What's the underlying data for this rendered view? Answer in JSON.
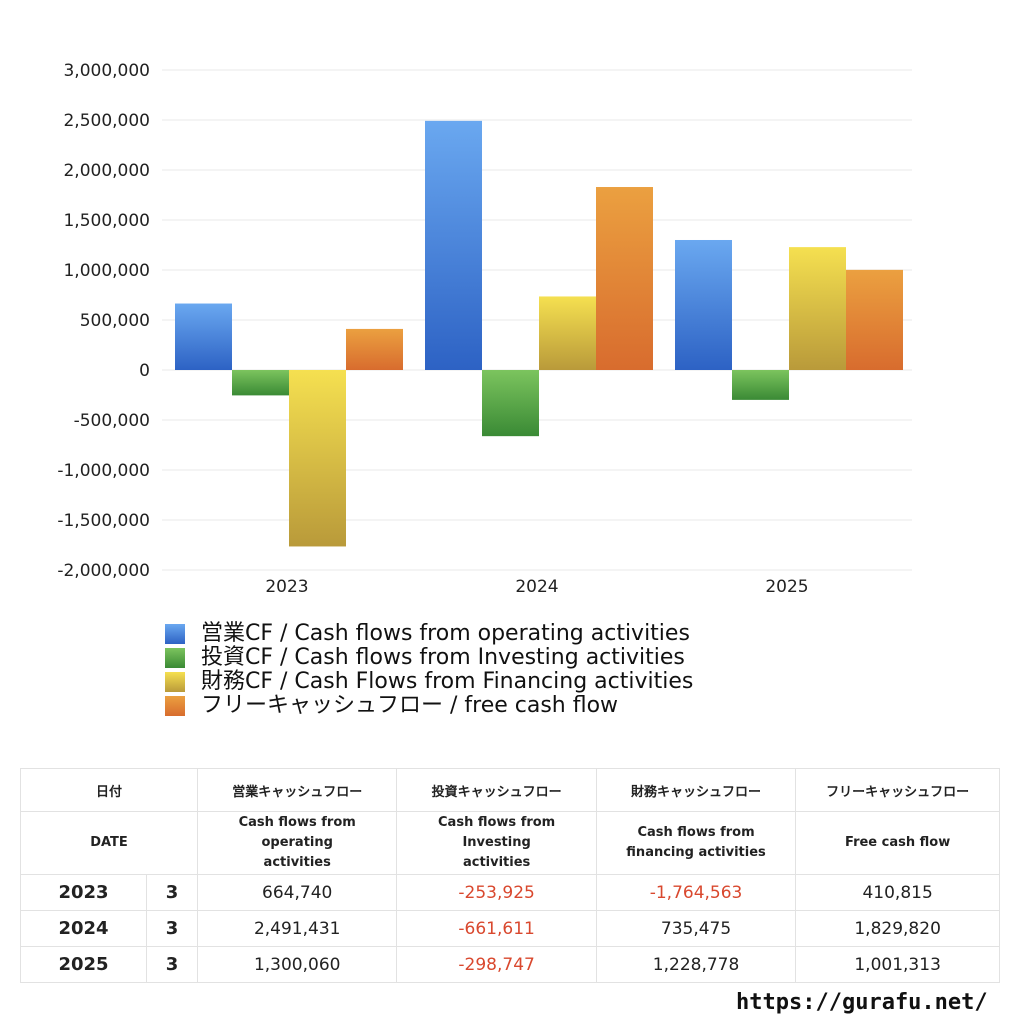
{
  "chart_data": {
    "type": "bar",
    "categories": [
      "2023",
      "2024",
      "2025"
    ],
    "ylim": [
      -2000000,
      3000000
    ],
    "yticks": [
      3000000,
      2500000,
      2000000,
      1500000,
      1000000,
      500000,
      0,
      -500000,
      -1000000,
      -1500000,
      -2000000
    ],
    "ytick_labels": [
      "3,000,000",
      "2,500,000",
      "2,000,000",
      "1,500,000",
      "1,000,000",
      "500,000",
      "0",
      "-500,000",
      "-1,000,000",
      "-1,500,000",
      "-2,000,000"
    ],
    "grid": true,
    "legend_placement": "bottom-left",
    "series": [
      {
        "name": "営業CF / Cash flows from operating activities",
        "values": [
          664740,
          2491431,
          1300060
        ],
        "color_top": "#6aa8f0",
        "color_bottom": "#2d62c4"
      },
      {
        "name": "投資CF / Cash flows from Investing activities",
        "values": [
          -253925,
          -661611,
          -298747
        ],
        "color_top": "#7cc45e",
        "color_bottom": "#3a8a35"
      },
      {
        "name": "財務CF / Cash Flows from Financing activities",
        "values": [
          -1764563,
          735475,
          1228778
        ],
        "color_top": "#f5e050",
        "color_bottom": "#b99a3a"
      },
      {
        "name": "フリーキャッシュフロー / free cash flow",
        "values": [
          410815,
          1829820,
          1001313
        ],
        "color_top": "#eba040",
        "color_bottom": "#d86c2e"
      }
    ]
  },
  "table": {
    "header1": [
      "日付",
      "",
      "営業キャッシュフロー",
      "投資キャッシュフロー",
      "財務キャッシュフロー",
      "フリーキャッシュフロー"
    ],
    "header2": [
      "DATE",
      "",
      "Cash flows from operating activities",
      "Cash flows from Investing activities",
      "Cash flows from financing activities",
      "Free cash flow"
    ],
    "rows": [
      {
        "year": "2023",
        "month": "3",
        "cells": [
          "664,740",
          "-253,925",
          "-1,764,563",
          "410,815"
        ]
      },
      {
        "year": "2024",
        "month": "3",
        "cells": [
          "2,491,431",
          "-661,611",
          "735,475",
          "1,829,820"
        ]
      },
      {
        "year": "2025",
        "month": "3",
        "cells": [
          "1,300,060",
          "-298,747",
          "1,228,778",
          "1,001,313"
        ]
      }
    ],
    "negative_color": "#d9482e"
  },
  "site": "https://gurafu.net/"
}
